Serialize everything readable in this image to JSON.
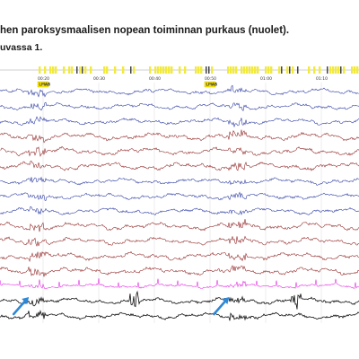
{
  "figure": {
    "caption_line1": "hen paroksysmaalisen nopean toiminnan purkaus (nuolet).",
    "caption_line2": "uvassa 1."
  },
  "timeline": {
    "timestamps": [
      "00:20",
      "00:30",
      "00:40",
      "00:50",
      "01:00",
      "01:10"
    ],
    "event_marks": [
      {
        "label": "LMAB",
        "timestamp": "00:20"
      },
      {
        "label": "LMAB",
        "timestamp": "00:50"
      }
    ]
  },
  "colors": {
    "blue_channel": "#1f2f9c",
    "red_channel": "#8b1a1a",
    "magenta_channel": "#e020e0",
    "black_channel": "#111111",
    "arrow": "#2f88d6",
    "event_bar": "#f2ea3a",
    "mark_badge": "#ffe800"
  },
  "channels": [
    {
      "color": "blue"
    },
    {
      "color": "blue"
    },
    {
      "color": "blue"
    },
    {
      "color": "red"
    },
    {
      "color": "red"
    },
    {
      "color": "red"
    },
    {
      "color": "blue"
    },
    {
      "color": "blue"
    },
    {
      "color": "blue"
    },
    {
      "color": "red"
    },
    {
      "color": "red"
    },
    {
      "color": "red"
    },
    {
      "color": "red"
    },
    {
      "color": "magenta"
    },
    {
      "color": "black"
    },
    {
      "color": "black"
    }
  ],
  "arrows": [
    {
      "icon": "arrow-up-right-icon",
      "timestamp": "00:16"
    },
    {
      "icon": "arrow-up-right-icon",
      "timestamp": "00:52"
    }
  ]
}
